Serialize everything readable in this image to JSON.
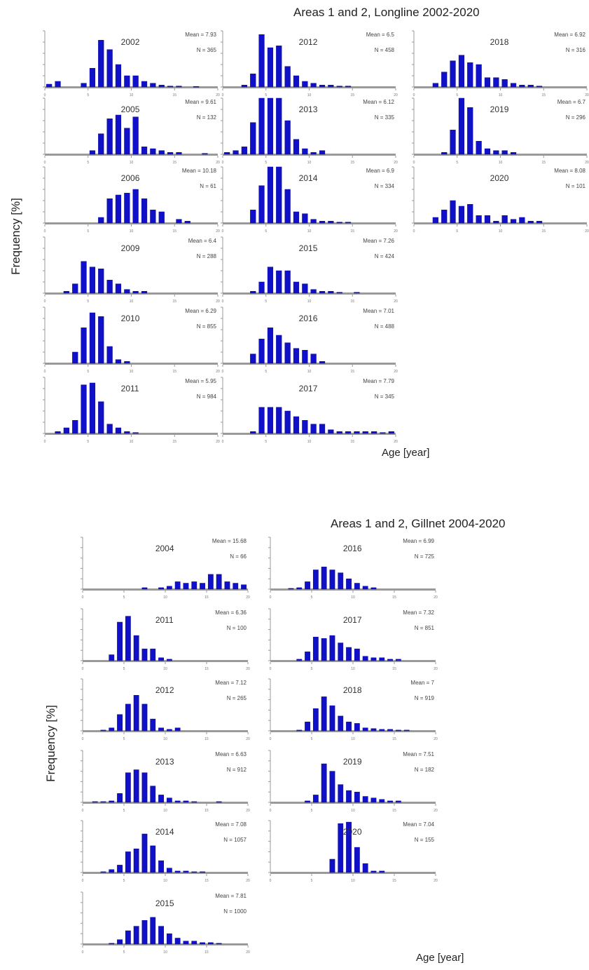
{
  "longline": {
    "title": "Areas 1 and 2, Longline 2002-2020",
    "ylabel": "Frequency [%]",
    "xlabel": "Age [year]"
  },
  "gillnet": {
    "title": "Areas 1 and 2, Gillnet 2004-2020",
    "ylabel": "Frequency [%]",
    "xlabel": "Age [year]"
  },
  "chart_data": [
    {
      "type": "bar",
      "group": "longline",
      "year": "2002",
      "mean": "Mean = 7.93",
      "n": "N = 365",
      "x": [
        1,
        2,
        3,
        4,
        5,
        6,
        7,
        8,
        9,
        10,
        11,
        12,
        13,
        14,
        15,
        16,
        17,
        18,
        19,
        20
      ],
      "values": [
        1.5,
        3,
        0,
        0,
        2,
        10,
        25,
        20,
        12,
        6,
        6,
        3,
        2,
        1,
        0.5,
        0.5,
        0,
        0.3,
        0,
        0
      ],
      "xticks": [
        0,
        5,
        10,
        15,
        20
      ]
    },
    {
      "type": "bar",
      "group": "longline",
      "year": "2012",
      "mean": "Mean = 6.5",
      "n": "N = 458",
      "x": [
        1,
        2,
        3,
        4,
        5,
        6,
        7,
        8,
        9,
        10,
        11,
        12,
        13,
        14,
        15,
        16,
        17,
        18,
        19,
        20
      ],
      "values": [
        0,
        0,
        1,
        7,
        28,
        21,
        22,
        11,
        6,
        3,
        2,
        1,
        1,
        0.5,
        0.5,
        0,
        0,
        0,
        0,
        0
      ],
      "xticks": [
        0,
        5,
        10,
        15,
        20
      ]
    },
    {
      "type": "bar",
      "group": "longline",
      "year": "2018",
      "mean": "Mean = 6.92",
      "n": "N = 316",
      "x": [
        1,
        2,
        3,
        4,
        5,
        6,
        7,
        8,
        9,
        10,
        11,
        12,
        13,
        14,
        15,
        16,
        17,
        18,
        19,
        20
      ],
      "values": [
        0,
        0,
        2,
        8,
        14,
        17,
        13,
        12,
        5,
        5,
        4,
        2,
        1,
        1,
        0.5,
        0,
        0,
        0,
        0,
        0
      ],
      "xticks": [
        0,
        5,
        10,
        15,
        20
      ]
    },
    {
      "type": "bar",
      "group": "longline",
      "year": "2005",
      "mean": "Mean = 9.61",
      "n": "N = 132",
      "x": [
        1,
        2,
        3,
        4,
        5,
        6,
        7,
        8,
        9,
        10,
        11,
        12,
        13,
        14,
        15,
        16,
        17,
        18,
        19,
        20
      ],
      "values": [
        0,
        0,
        0,
        0,
        0,
        2,
        11,
        19,
        21,
        14,
        20,
        4,
        3,
        2,
        1,
        1,
        0,
        0,
        0.5,
        0
      ],
      "xticks": [
        0,
        5,
        10,
        15,
        20
      ]
    },
    {
      "type": "bar",
      "group": "longline",
      "year": "2013",
      "mean": "Mean = 6.12",
      "n": "N = 335",
      "x": [
        1,
        2,
        3,
        4,
        5,
        6,
        7,
        8,
        9,
        10,
        11,
        12,
        13,
        14,
        15,
        16,
        17,
        18,
        19,
        20
      ],
      "values": [
        1,
        2,
        4,
        17,
        32,
        40,
        30,
        18,
        8,
        3,
        1,
        2,
        0,
        0,
        0,
        0,
        0,
        0,
        0,
        0
      ],
      "xticks": [
        0,
        5,
        10,
        15,
        20
      ]
    },
    {
      "type": "bar",
      "group": "longline",
      "year": "2019",
      "mean": "Mean = 6.7",
      "n": "N = 296",
      "x": [
        1,
        2,
        3,
        4,
        5,
        6,
        7,
        8,
        9,
        10,
        11,
        12,
        13,
        14,
        15,
        16,
        17,
        18,
        19,
        20
      ],
      "values": [
        0,
        0,
        0,
        1,
        13,
        31,
        25,
        7,
        3,
        2,
        2,
        1,
        0,
        0,
        0,
        0,
        0,
        0,
        0,
        0
      ],
      "xticks": [
        0,
        5,
        10,
        15,
        20
      ]
    },
    {
      "type": "bar",
      "group": "longline",
      "year": "2006",
      "mean": "Mean = 10.18",
      "n": "N = 61",
      "x": [
        1,
        2,
        3,
        4,
        5,
        6,
        7,
        8,
        9,
        10,
        11,
        12,
        13,
        14,
        15,
        16,
        17,
        18,
        19,
        20
      ],
      "values": [
        0,
        0,
        0,
        0,
        0,
        0,
        3,
        13,
        15,
        16,
        18,
        13,
        7,
        6,
        0,
        2,
        1,
        0,
        0,
        0
      ],
      "xticks": [
        0,
        5,
        10,
        15,
        20
      ]
    },
    {
      "type": "bar",
      "group": "longline",
      "year": "2014",
      "mean": "Mean = 6.9",
      "n": "N = 334",
      "x": [
        1,
        2,
        3,
        4,
        5,
        6,
        7,
        8,
        9,
        10,
        11,
        12,
        13,
        14,
        15,
        16,
        17,
        18,
        19,
        20
      ],
      "values": [
        0,
        0,
        0,
        7,
        20,
        34,
        34,
        18,
        6,
        5,
        2,
        1,
        1,
        0.5,
        0.5,
        0,
        0,
        0,
        0,
        0
      ],
      "xticks": [
        0,
        5,
        10,
        15,
        20
      ]
    },
    {
      "type": "bar",
      "group": "longline",
      "year": "2020",
      "mean": "Mean = 8.08",
      "n": "N = 101",
      "x": [
        1,
        2,
        3,
        4,
        5,
        6,
        7,
        8,
        9,
        10,
        11,
        12,
        13,
        14,
        15,
        16,
        17,
        18,
        19,
        20
      ],
      "values": [
        0,
        0,
        3,
        7,
        12,
        9,
        10,
        4,
        4,
        1,
        4,
        2,
        3,
        1,
        1,
        0,
        0,
        0,
        0,
        0
      ],
      "xticks": [
        0,
        5,
        10,
        15,
        20
      ]
    },
    {
      "type": "bar",
      "group": "longline",
      "year": "2009",
      "mean": "Mean = 6.4",
      "n": "N = 288",
      "x": [
        1,
        2,
        3,
        4,
        5,
        6,
        7,
        8,
        9,
        10,
        11,
        12,
        13,
        14,
        15,
        16,
        17,
        18,
        19,
        20
      ],
      "values": [
        0,
        0,
        1,
        5,
        17,
        14,
        13,
        7,
        5,
        2,
        1,
        1,
        0,
        0,
        0,
        0,
        0,
        0,
        0,
        0
      ],
      "xticks": [
        0,
        5,
        10,
        15,
        20
      ]
    },
    {
      "type": "bar",
      "group": "longline",
      "year": "2015",
      "mean": "Mean = 7.26",
      "n": "N = 424",
      "x": [
        1,
        2,
        3,
        4,
        5,
        6,
        7,
        8,
        9,
        10,
        11,
        12,
        13,
        14,
        15,
        16,
        17,
        18,
        19,
        20
      ],
      "values": [
        0,
        0,
        0,
        1,
        6,
        14,
        12,
        12,
        6,
        5,
        2,
        1,
        1,
        0.5,
        0,
        0.5,
        0,
        0,
        0,
        0
      ],
      "xticks": [
        0,
        5,
        10,
        15,
        20
      ]
    },
    {
      "type": "bar",
      "group": "longline",
      "year": "2010",
      "mean": "Mean = 6.29",
      "n": "N = 855",
      "x": [
        1,
        2,
        3,
        4,
        5,
        6,
        7,
        8,
        9,
        10,
        11,
        12,
        13,
        14,
        15,
        16,
        17,
        18,
        19,
        20
      ],
      "values": [
        0,
        0,
        0,
        6,
        19,
        27,
        25,
        9,
        2,
        1,
        0,
        0,
        0,
        0,
        0,
        0,
        0,
        0,
        0,
        0
      ],
      "xticks": [
        0,
        5,
        10,
        15,
        20
      ]
    },
    {
      "type": "bar",
      "group": "longline",
      "year": "2016",
      "mean": "Mean = 7.01",
      "n": "N = 488",
      "x": [
        1,
        2,
        3,
        4,
        5,
        6,
        7,
        8,
        9,
        10,
        11,
        12,
        13,
        14,
        15,
        16,
        17,
        18,
        19,
        20
      ],
      "values": [
        0,
        0,
        0,
        5,
        13,
        19,
        15,
        11,
        8,
        7,
        5,
        1,
        0,
        0,
        0,
        0,
        0,
        0,
        0,
        0
      ],
      "xticks": [
        0,
        5,
        10,
        15,
        20
      ]
    },
    {
      "type": "bar",
      "group": "longline",
      "year": "2011",
      "mean": "Mean = 5.95",
      "n": "N = 984",
      "x": [
        1,
        2,
        3,
        4,
        5,
        6,
        7,
        8,
        9,
        10,
        11,
        12,
        13,
        14,
        15,
        16,
        17,
        18,
        19,
        20
      ],
      "values": [
        0,
        1,
        3,
        7,
        26,
        27,
        17,
        5,
        3,
        1,
        0.5,
        0,
        0,
        0,
        0,
        0,
        0,
        0,
        0,
        0
      ],
      "xticks": [
        0,
        5,
        10,
        15,
        20
      ]
    },
    {
      "type": "bar",
      "group": "longline",
      "year": "2017",
      "mean": "Mean = 7.79",
      "n": "N = 345",
      "x": [
        1,
        2,
        3,
        4,
        5,
        6,
        7,
        8,
        9,
        10,
        11,
        12,
        13,
        14,
        15,
        16,
        17,
        18,
        19,
        20
      ],
      "values": [
        0,
        0,
        0,
        1,
        14,
        14,
        14,
        12,
        9,
        7,
        5,
        5,
        2,
        1,
        1,
        1,
        1,
        1,
        0.5,
        1
      ],
      "xticks": [
        0,
        5,
        10,
        15,
        20
      ]
    },
    {
      "type": "bar",
      "group": "gillnet",
      "year": "2004",
      "mean": "Mean = 15.68",
      "n": "N = 66",
      "x": [
        1,
        2,
        3,
        4,
        5,
        6,
        7,
        8,
        9,
        10,
        11,
        12,
        13,
        14,
        15,
        16,
        17,
        18,
        19,
        20
      ],
      "values": [
        0,
        0,
        0,
        0,
        0,
        0,
        0,
        1,
        0,
        1,
        2,
        5,
        4,
        5,
        4,
        10,
        10,
        5,
        4,
        3
      ],
      "xticks": [
        0,
        5,
        10,
        15,
        20
      ]
    },
    {
      "type": "bar",
      "group": "gillnet",
      "year": "2016",
      "mean": "Mean = 6.99",
      "n": "N = 725",
      "x": [
        1,
        2,
        3,
        4,
        5,
        6,
        7,
        8,
        9,
        10,
        11,
        12,
        13,
        14,
        15,
        16,
        17,
        18,
        19,
        20
      ],
      "values": [
        0,
        0,
        0.5,
        1,
        5,
        13,
        15,
        13,
        11,
        7,
        4,
        2,
        1,
        0,
        0,
        0,
        0,
        0,
        0,
        0
      ],
      "xticks": [
        0,
        5,
        10,
        15,
        20
      ]
    },
    {
      "type": "bar",
      "group": "gillnet",
      "year": "2011",
      "mean": "Mean = 6.36",
      "n": "N = 100",
      "x": [
        1,
        2,
        3,
        4,
        5,
        6,
        7,
        8,
        9,
        10,
        11,
        12,
        13,
        14,
        15,
        16,
        17,
        18,
        19,
        20
      ],
      "values": [
        0,
        0,
        0,
        4,
        26,
        30,
        17,
        8,
        8,
        2,
        1,
        0,
        0,
        0,
        0,
        0,
        0,
        0,
        0,
        0
      ],
      "xticks": [
        0,
        5,
        10,
        15,
        20
      ]
    },
    {
      "type": "bar",
      "group": "gillnet",
      "year": "2017",
      "mean": "Mean = 7.32",
      "n": "N = 851",
      "x": [
        1,
        2,
        3,
        4,
        5,
        6,
        7,
        8,
        9,
        10,
        11,
        12,
        13,
        14,
        15,
        16,
        17,
        18,
        19,
        20
      ],
      "values": [
        0,
        0,
        0,
        1,
        6,
        16,
        15,
        17,
        12,
        9,
        8,
        3,
        2,
        2,
        1,
        1,
        0,
        0,
        0,
        0
      ],
      "xticks": [
        0,
        5,
        10,
        15,
        20
      ]
    },
    {
      "type": "bar",
      "group": "gillnet",
      "year": "2012",
      "mean": "Mean = 7.12",
      "n": "N = 265",
      "x": [
        1,
        2,
        3,
        4,
        5,
        6,
        7,
        8,
        9,
        10,
        11,
        12,
        13,
        14,
        15,
        16,
        17,
        18,
        19,
        20
      ],
      "values": [
        0,
        0,
        0.5,
        2,
        11,
        18,
        24,
        18,
        8,
        2,
        1,
        2,
        0,
        0,
        0,
        0,
        0,
        0,
        0,
        0
      ],
      "xticks": [
        0,
        5,
        10,
        15,
        20
      ]
    },
    {
      "type": "bar",
      "group": "gillnet",
      "year": "2018",
      "mean": "Mean = 7",
      "n": "N = 919",
      "x": [
        1,
        2,
        3,
        4,
        5,
        6,
        7,
        8,
        9,
        10,
        11,
        12,
        13,
        14,
        15,
        16,
        17,
        18,
        19,
        20
      ],
      "values": [
        0,
        0,
        0,
        0.5,
        6,
        15,
        23,
        17,
        10,
        6,
        5,
        2,
        1.5,
        1,
        1,
        0.5,
        0.5,
        0,
        0,
        0
      ],
      "xticks": [
        0,
        5,
        10,
        15,
        20
      ]
    },
    {
      "type": "bar",
      "group": "gillnet",
      "year": "2013",
      "mean": "Mean = 6.63",
      "n": "N = 912",
      "x": [
        1,
        2,
        3,
        4,
        5,
        6,
        7,
        8,
        9,
        10,
        11,
        12,
        13,
        14,
        15,
        16,
        17,
        18,
        19,
        20
      ],
      "values": [
        0,
        0.5,
        0.5,
        1,
        6,
        20,
        22,
        20,
        11,
        5,
        3,
        1,
        1,
        0.5,
        0,
        0,
        0.5,
        0,
        0,
        0
      ],
      "xticks": [
        0,
        5,
        10,
        15,
        20
      ]
    },
    {
      "type": "bar",
      "group": "gillnet",
      "year": "2019",
      "mean": "Mean = 7.51",
      "n": "N = 182",
      "x": [
        1,
        2,
        3,
        4,
        5,
        6,
        7,
        8,
        9,
        10,
        11,
        12,
        13,
        14,
        15,
        16,
        17,
        18,
        19,
        20
      ],
      "values": [
        0,
        0,
        0,
        0,
        1,
        5,
        26,
        21,
        12,
        8,
        7,
        4,
        3,
        2,
        1,
        1,
        0,
        0,
        0,
        0
      ],
      "xticks": [
        0,
        5,
        10,
        15,
        20
      ]
    },
    {
      "type": "bar",
      "group": "gillnet",
      "year": "2014",
      "mean": "Mean = 7.08",
      "n": "N = 1057",
      "x": [
        1,
        2,
        3,
        4,
        5,
        6,
        7,
        8,
        9,
        10,
        11,
        12,
        13,
        14,
        15,
        16,
        17,
        18,
        19,
        20
      ],
      "values": [
        0,
        0,
        0.5,
        2,
        5,
        14,
        16,
        26,
        18,
        8,
        3,
        1,
        1,
        0.5,
        0.5,
        0,
        0,
        0,
        0,
        0
      ],
      "xticks": [
        0,
        5,
        10,
        15,
        20
      ]
    },
    {
      "type": "bar",
      "group": "gillnet",
      "year": "2020",
      "mean": "Mean = 7.04",
      "n": "N = 155",
      "x": [
        1,
        2,
        3,
        4,
        5,
        6,
        7,
        8,
        9,
        10,
        11,
        12,
        13,
        14,
        15,
        16,
        17,
        18,
        19,
        20
      ],
      "values": [
        0,
        0,
        0,
        0,
        0,
        0,
        0,
        9,
        33,
        34,
        17,
        6,
        1,
        1,
        0,
        0,
        0,
        0,
        0,
        0
      ],
      "xticks": [
        0,
        5,
        10,
        15,
        20
      ]
    },
    {
      "type": "bar",
      "group": "gillnet",
      "year": "2015",
      "mean": "Mean = 7.81",
      "n": "N = 1000",
      "x": [
        1,
        2,
        3,
        4,
        5,
        6,
        7,
        8,
        9,
        10,
        11,
        12,
        13,
        14,
        15,
        16,
        17,
        18,
        19,
        20
      ],
      "values": [
        0,
        0,
        0,
        0.5,
        3,
        9,
        12,
        16,
        18,
        12,
        7,
        4,
        2,
        2,
        1,
        1,
        0.5,
        0,
        0,
        0
      ],
      "xticks": [
        0,
        5,
        10,
        15,
        20
      ]
    }
  ]
}
